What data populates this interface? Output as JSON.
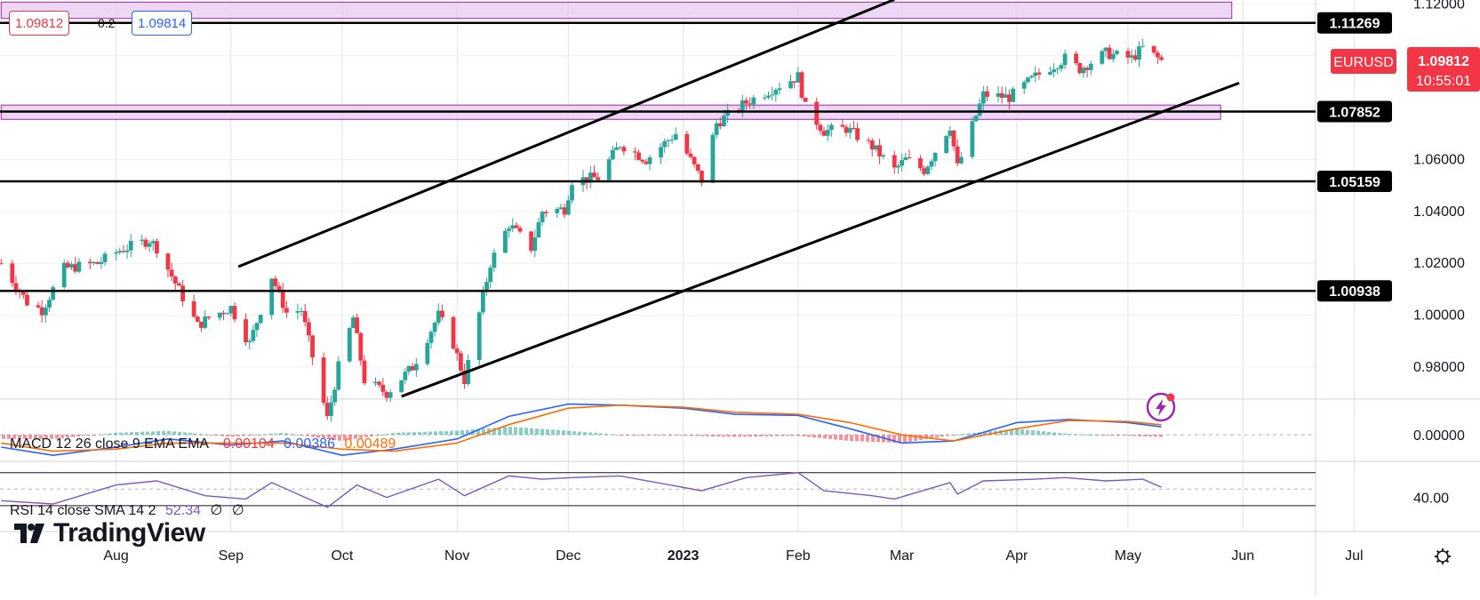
{
  "quote": {
    "bid": "1.09812",
    "spread": "0.2",
    "ask": "1.09814"
  },
  "symbol_badge": {
    "symbol": "EURUSD",
    "price": "1.09812",
    "countdown": "10:55:01"
  },
  "colors": {
    "up": "#26a69a",
    "down": "#f23645",
    "zone_fill": "#e8c9f2",
    "zone_border": "#9c27b0",
    "macd_line": "#2962ff",
    "signal_line": "#ff6d00",
    "rsi_line": "#7e57c2"
  },
  "legends": {
    "macd": {
      "title": "MACD 12 26 close 9 EMA EMA",
      "hist": "-0.00104",
      "macd": "0.00386",
      "signal": "0.00489"
    },
    "rsi": {
      "title": "RSI 14 close SMA 14 2",
      "value": "52.34",
      "extra1": "∅",
      "extra2": "∅"
    }
  },
  "logo": {
    "text": "TradingView"
  },
  "chart_data": [
    {
      "type": "candlestick",
      "series": [
        {
          "name": "EURUSD"
        }
      ],
      "x_ticks": [
        "Aug",
        "Sep",
        "Oct",
        "Nov",
        "Dec",
        "2023",
        "Feb",
        "Mar",
        "Apr",
        "May",
        "Jun",
        "Jul"
      ],
      "y_ticks": [
        "1.12000",
        "1.06000",
        "1.04000",
        "1.02000",
        "1.00000",
        "0.98000"
      ],
      "ylim": [
        0.968,
        1.1215
      ],
      "grid": true,
      "level_labels": [
        "1.11269",
        "1.07852",
        "1.05159",
        "1.00938"
      ],
      "horizontal_levels": [
        1.11269,
        1.07852,
        1.05159,
        1.00938
      ],
      "zones": [
        {
          "from_date": "2022-07-01",
          "to_date": "2023-05-29",
          "top": 1.1207,
          "bottom": 1.1144
        },
        {
          "from_date": "2022-07-01",
          "to_date": "2023-05-26",
          "top": 1.081,
          "bottom": 1.0755
        }
      ],
      "trendlines": [
        {
          "points": [
            [
              "2022-09-03",
              1.0187
            ],
            [
              "2023-02-27",
              1.1217
            ]
          ]
        },
        {
          "points": [
            [
              "2022-10-17",
              0.9687
            ],
            [
              "2023-05-31",
              1.0895
            ]
          ]
        }
      ],
      "price_path": [
        [
          "2022-07-01",
          1.02
        ],
        [
          "2022-07-08",
          1.005
        ],
        [
          "2022-07-12",
          1.002
        ],
        [
          "2022-07-18",
          1.018
        ],
        [
          "2022-07-27",
          1.02
        ],
        [
          "2022-08-02",
          1.025
        ],
        [
          "2022-08-10",
          1.029
        ],
        [
          "2022-08-12",
          1.026
        ],
        [
          "2022-08-23",
          0.996
        ],
        [
          "2022-08-26",
          0.999
        ],
        [
          "2022-09-01",
          1.003
        ],
        [
          "2022-09-06",
          0.989
        ],
        [
          "2022-09-12",
          1.015
        ],
        [
          "2022-09-16",
          1.001
        ],
        [
          "2022-09-20",
          1.002
        ],
        [
          "2022-09-27",
          0.96
        ],
        [
          "2022-09-30",
          0.98
        ],
        [
          "2022-10-04",
          0.999
        ],
        [
          "2022-10-07",
          0.975
        ],
        [
          "2022-10-13",
          0.97
        ],
        [
          "2022-10-20",
          0.98
        ],
        [
          "2022-10-27",
          1.0
        ],
        [
          "2022-10-31",
          0.989
        ],
        [
          "2022-11-03",
          0.975
        ],
        [
          "2022-11-10",
          1.02
        ],
        [
          "2022-11-15",
          1.035
        ],
        [
          "2022-11-21",
          1.026
        ],
        [
          "2022-11-24",
          1.04
        ],
        [
          "2022-11-30",
          1.041
        ],
        [
          "2022-12-02",
          1.052
        ],
        [
          "2022-12-09",
          1.053
        ],
        [
          "2022-12-15",
          1.066
        ],
        [
          "2022-12-22",
          1.06
        ],
        [
          "2022-12-30",
          1.07
        ],
        [
          "2023-01-06",
          1.052
        ],
        [
          "2023-01-10",
          1.074
        ],
        [
          "2023-01-18",
          1.082
        ],
        [
          "2023-01-26",
          1.088
        ],
        [
          "2023-02-01",
          1.092
        ],
        [
          "2023-02-03",
          1.08
        ],
        [
          "2023-02-08",
          1.071
        ],
        [
          "2023-02-14",
          1.072
        ],
        [
          "2023-02-21",
          1.065
        ],
        [
          "2023-02-27",
          1.056
        ],
        [
          "2023-03-02",
          1.06
        ],
        [
          "2023-03-07",
          1.056
        ],
        [
          "2023-03-14",
          1.073
        ],
        [
          "2023-03-16",
          1.057
        ],
        [
          "2023-03-23",
          1.085
        ],
        [
          "2023-03-30",
          1.084
        ],
        [
          "2023-04-06",
          1.092
        ],
        [
          "2023-04-14",
          1.099
        ],
        [
          "2023-04-18",
          1.095
        ],
        [
          "2023-04-25",
          1.101
        ],
        [
          "2023-04-28",
          1.1
        ],
        [
          "2023-05-02",
          1.099
        ],
        [
          "2023-05-05",
          1.103
        ],
        [
          "2023-05-10",
          1.0981
        ]
      ]
    },
    {
      "type": "line",
      "title": "MACD 12 26 close 9 EMA EMA",
      "y_ticks": [
        "0.00000"
      ],
      "ylim": [
        -0.0125,
        0.017
      ],
      "series": [
        {
          "name": "Histogram",
          "last": -0.00104
        },
        {
          "name": "MACD",
          "last": 0.00386,
          "points": [
            [
              "2022-07-01",
              -0.006
            ],
            [
              "2022-07-15",
              -0.01
            ],
            [
              "2022-08-01",
              -0.006
            ],
            [
              "2022-08-15",
              -0.002
            ],
            [
              "2022-09-01",
              -0.005
            ],
            [
              "2022-09-15",
              -0.003
            ],
            [
              "2022-10-01",
              -0.01
            ],
            [
              "2022-10-15",
              -0.007
            ],
            [
              "2022-11-01",
              -0.002
            ],
            [
              "2022-11-15",
              0.009
            ],
            [
              "2022-12-01",
              0.015
            ],
            [
              "2022-12-15",
              0.0145
            ],
            [
              "2023-01-01",
              0.013
            ],
            [
              "2023-01-15",
              0.01
            ],
            [
              "2023-02-01",
              0.0095
            ],
            [
              "2023-02-15",
              0.003
            ],
            [
              "2023-03-01",
              -0.004
            ],
            [
              "2023-03-15",
              -0.003
            ],
            [
              "2023-04-01",
              0.006
            ],
            [
              "2023-04-15",
              0.0075
            ],
            [
              "2023-05-01",
              0.006
            ],
            [
              "2023-05-10",
              0.0039
            ]
          ]
        },
        {
          "name": "Signal",
          "last": 0.00489,
          "points": [
            [
              "2022-07-01",
              -0.004
            ],
            [
              "2022-07-15",
              -0.008
            ],
            [
              "2022-08-01",
              -0.007
            ],
            [
              "2022-08-15",
              -0.004
            ],
            [
              "2022-09-01",
              -0.004
            ],
            [
              "2022-09-15",
              -0.004
            ],
            [
              "2022-10-01",
              -0.007
            ],
            [
              "2022-10-15",
              -0.008
            ],
            [
              "2022-11-01",
              -0.004
            ],
            [
              "2022-11-15",
              0.005
            ],
            [
              "2022-12-01",
              0.013
            ],
            [
              "2022-12-15",
              0.0145
            ],
            [
              "2023-01-01",
              0.0135
            ],
            [
              "2023-01-15",
              0.011
            ],
            [
              "2023-02-01",
              0.01
            ],
            [
              "2023-02-15",
              0.006
            ],
            [
              "2023-03-01",
              0.0
            ],
            [
              "2023-03-15",
              -0.003
            ],
            [
              "2023-04-01",
              0.003
            ],
            [
              "2023-04-15",
              0.007
            ],
            [
              "2023-05-01",
              0.0065
            ],
            [
              "2023-05-10",
              0.0049
            ]
          ]
        }
      ]
    },
    {
      "type": "line",
      "title": "RSI 14 close SMA 14 2",
      "y_ticks": [
        "40.00"
      ],
      "ylim": [
        18,
        74
      ],
      "series": [
        {
          "name": "RSI",
          "last": 52.34,
          "points": [
            [
              "2022-07-01",
              36
            ],
            [
              "2022-07-15",
              32
            ],
            [
              "2022-08-01",
              55
            ],
            [
              "2022-08-12",
              60
            ],
            [
              "2022-08-25",
              42
            ],
            [
              "2022-09-05",
              38
            ],
            [
              "2022-09-12",
              58
            ],
            [
              "2022-09-27",
              28
            ],
            [
              "2022-10-05",
              55
            ],
            [
              "2022-10-13",
              40
            ],
            [
              "2022-10-27",
              62
            ],
            [
              "2022-11-03",
              42
            ],
            [
              "2022-11-15",
              66
            ],
            [
              "2022-11-24",
              62
            ],
            [
              "2022-12-02",
              64
            ],
            [
              "2022-12-15",
              66
            ],
            [
              "2023-01-06",
              48
            ],
            [
              "2023-01-18",
              64
            ],
            [
              "2023-02-01",
              70
            ],
            [
              "2023-02-08",
              48
            ],
            [
              "2023-02-21",
              42
            ],
            [
              "2023-02-27",
              38
            ],
            [
              "2023-03-14",
              58
            ],
            [
              "2023-03-16",
              44
            ],
            [
              "2023-03-23",
              60
            ],
            [
              "2023-04-06",
              62
            ],
            [
              "2023-04-14",
              64
            ],
            [
              "2023-04-25",
              60
            ],
            [
              "2023-05-05",
              62
            ],
            [
              "2023-05-10",
              52.34
            ]
          ]
        }
      ]
    }
  ]
}
